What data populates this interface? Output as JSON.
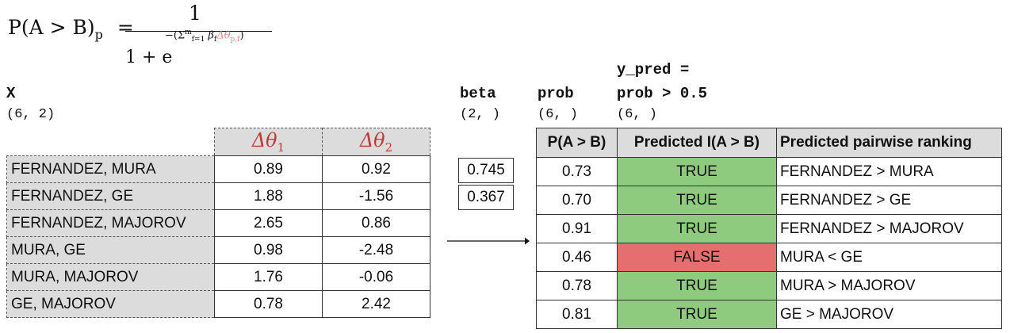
{
  "formula": {
    "lhs": "P(A > B)",
    "lhs_sub": "p",
    "eq": "=",
    "numerator": "1",
    "den_base": "1 + e",
    "exp_minus": "−(",
    "exp_sum": "Σ",
    "exp_sum_sub": "f=1",
    "exp_sum_sup": "m",
    "exp_beta": "β",
    "exp_beta_sub": "f",
    "exp_delta": "Δθ",
    "exp_delta_sub": "p,f",
    "exp_close": ")"
  },
  "x_block": {
    "name": "X",
    "shape": "(6, 2)",
    "col1": "Δθ",
    "col1_sub": "1",
    "col2": "Δθ",
    "col2_sub": "2",
    "rows": [
      {
        "label": "FERNANDEZ, MURA",
        "v1": "0.89",
        "v2": "0.92"
      },
      {
        "label": "FERNANDEZ, GE",
        "v1": "1.88",
        "v2": "-1.56"
      },
      {
        "label": "FERNANDEZ, MAJOROV",
        "v1": "2.65",
        "v2": "0.86"
      },
      {
        "label": "MURA, GE",
        "v1": "0.98",
        "v2": "-2.48"
      },
      {
        "label": "MURA, MAJOROV",
        "v1": "1.76",
        "v2": "-0.06"
      },
      {
        "label": "GE, MAJOROV",
        "v1": "0.78",
        "v2": "2.42"
      }
    ]
  },
  "beta_block": {
    "name": "beta",
    "shape": "(2, )",
    "values": [
      "0.745",
      "0.367"
    ]
  },
  "prob_block": {
    "name": "prob",
    "shape": "(6, )"
  },
  "ypred_block": {
    "name_line1": "y_pred =",
    "name_line2": "prob > 0.5",
    "shape": "(6, )"
  },
  "results": {
    "headers": [
      "P(A > B)",
      "Predicted I(A > B)",
      "Predicted pairwise ranking"
    ],
    "rows": [
      {
        "prob": "0.73",
        "pred": "TRUE",
        "rank": "FERNANDEZ > MURA"
      },
      {
        "prob": "0.70",
        "pred": "TRUE",
        "rank": "FERNANDEZ > GE"
      },
      {
        "prob": "0.91",
        "pred": "TRUE",
        "rank": "FERNANDEZ > MAJOROV"
      },
      {
        "prob": "0.46",
        "pred": "FALSE",
        "rank": "MURA < GE"
      },
      {
        "prob": "0.78",
        "pred": "TRUE",
        "rank": "MURA > MAJOROV"
      },
      {
        "prob": "0.81",
        "pred": "TRUE",
        "rank": "GE > MAJOROV"
      }
    ]
  },
  "colors": {
    "true_fill": "#8fcb7e",
    "false_fill": "#e56e6e",
    "header_fill": "#dcdcdc",
    "delta_text": "#c0393b"
  }
}
